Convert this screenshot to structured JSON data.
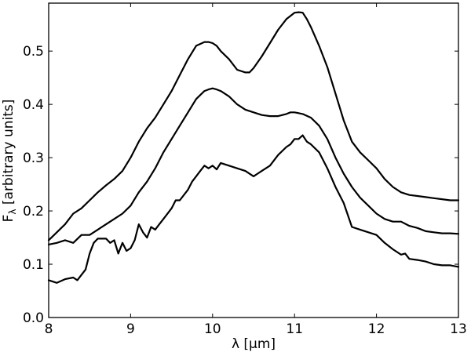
{
  "chart_data": {
    "type": "line",
    "title": "",
    "xlabel": "λ [μm]",
    "ylabel": "F_λ [arbitrary units]",
    "ylabel_main": "F",
    "ylabel_sub": "λ",
    "ylabel_rest": " [arbitrary units]",
    "xlim": [
      8,
      13
    ],
    "ylim": [
      0.0,
      0.59
    ],
    "xticks": [
      8,
      9,
      10,
      11,
      12,
      13
    ],
    "xtick_labels": [
      "8",
      "9",
      "10",
      "11",
      "12",
      "13"
    ],
    "yticks": [
      0.0,
      0.1,
      0.2,
      0.3,
      0.4,
      0.5
    ],
    "ytick_labels": [
      "0.0",
      "0.1",
      "0.2",
      "0.3",
      "0.4",
      "0.5"
    ],
    "grid": false,
    "legend": "none",
    "line_color": "#000000",
    "series": [
      {
        "x": [
          8.0,
          8.1,
          8.2,
          8.3,
          8.4,
          8.5,
          8.6,
          8.7,
          8.8,
          8.9,
          9.0,
          9.1,
          9.2,
          9.3,
          9.4,
          9.5,
          9.6,
          9.7,
          9.8,
          9.9,
          9.95,
          10.0,
          10.05,
          10.1,
          10.2,
          10.3,
          10.4,
          10.45,
          10.5,
          10.6,
          10.7,
          10.8,
          10.9,
          11.0,
          11.05,
          11.1,
          11.15,
          11.2,
          11.3,
          11.4,
          11.5,
          11.6,
          11.7,
          11.8,
          11.9,
          12.0,
          12.1,
          12.2,
          12.3,
          12.4,
          12.5,
          12.6,
          12.7,
          12.8,
          12.9,
          13.0
        ],
        "y": [
          0.145,
          0.16,
          0.175,
          0.195,
          0.205,
          0.22,
          0.235,
          0.248,
          0.26,
          0.275,
          0.3,
          0.33,
          0.355,
          0.375,
          0.4,
          0.425,
          0.455,
          0.485,
          0.51,
          0.517,
          0.517,
          0.515,
          0.51,
          0.5,
          0.485,
          0.465,
          0.46,
          0.46,
          0.468,
          0.49,
          0.515,
          0.54,
          0.56,
          0.572,
          0.573,
          0.572,
          0.56,
          0.545,
          0.51,
          0.47,
          0.42,
          0.37,
          0.33,
          0.31,
          0.295,
          0.28,
          0.26,
          0.245,
          0.235,
          0.23,
          0.228,
          0.226,
          0.224,
          0.222,
          0.22,
          0.22
        ]
      },
      {
        "x": [
          8.0,
          8.1,
          8.2,
          8.3,
          8.4,
          8.5,
          8.6,
          8.7,
          8.8,
          8.9,
          9.0,
          9.1,
          9.2,
          9.3,
          9.4,
          9.5,
          9.6,
          9.7,
          9.8,
          9.9,
          9.95,
          10.0,
          10.05,
          10.1,
          10.2,
          10.3,
          10.4,
          10.5,
          10.6,
          10.7,
          10.8,
          10.9,
          10.95,
          11.0,
          11.1,
          11.2,
          11.3,
          11.4,
          11.5,
          11.6,
          11.7,
          11.8,
          11.9,
          12.0,
          12.1,
          12.2,
          12.3,
          12.4,
          12.5,
          12.6,
          12.7,
          12.8,
          12.9,
          13.0
        ],
        "y": [
          0.137,
          0.14,
          0.145,
          0.14,
          0.155,
          0.155,
          0.165,
          0.175,
          0.185,
          0.195,
          0.21,
          0.235,
          0.255,
          0.28,
          0.31,
          0.335,
          0.36,
          0.385,
          0.41,
          0.425,
          0.428,
          0.43,
          0.428,
          0.425,
          0.415,
          0.4,
          0.39,
          0.385,
          0.38,
          0.378,
          0.378,
          0.382,
          0.385,
          0.385,
          0.382,
          0.375,
          0.36,
          0.335,
          0.3,
          0.27,
          0.245,
          0.225,
          0.21,
          0.195,
          0.185,
          0.18,
          0.18,
          0.172,
          0.168,
          0.162,
          0.16,
          0.158,
          0.158,
          0.157
        ]
      },
      {
        "x": [
          8.0,
          8.1,
          8.2,
          8.3,
          8.35,
          8.4,
          8.45,
          8.5,
          8.55,
          8.6,
          8.7,
          8.75,
          8.8,
          8.85,
          8.9,
          8.95,
          9.0,
          9.05,
          9.1,
          9.15,
          9.2,
          9.25,
          9.3,
          9.35,
          9.4,
          9.5,
          9.55,
          9.6,
          9.7,
          9.75,
          9.8,
          9.85,
          9.9,
          9.95,
          10.0,
          10.05,
          10.1,
          10.2,
          10.3,
          10.4,
          10.5,
          10.55,
          10.6,
          10.7,
          10.8,
          10.9,
          10.95,
          11.0,
          11.05,
          11.1,
          11.15,
          11.2,
          11.3,
          11.4,
          11.5,
          11.6,
          11.7,
          11.8,
          11.9,
          12.0,
          12.1,
          12.2,
          12.3,
          12.35,
          12.4,
          12.5,
          12.6,
          12.7,
          12.8,
          12.9,
          13.0
        ],
        "y": [
          0.07,
          0.065,
          0.072,
          0.075,
          0.07,
          0.08,
          0.09,
          0.12,
          0.14,
          0.148,
          0.148,
          0.14,
          0.145,
          0.12,
          0.14,
          0.125,
          0.13,
          0.145,
          0.175,
          0.16,
          0.15,
          0.17,
          0.165,
          0.175,
          0.185,
          0.205,
          0.22,
          0.22,
          0.24,
          0.255,
          0.265,
          0.275,
          0.285,
          0.28,
          0.285,
          0.278,
          0.29,
          0.285,
          0.28,
          0.275,
          0.265,
          0.27,
          0.275,
          0.285,
          0.305,
          0.32,
          0.325,
          0.335,
          0.335,
          0.342,
          0.33,
          0.325,
          0.31,
          0.28,
          0.245,
          0.215,
          0.17,
          0.165,
          0.16,
          0.155,
          0.14,
          0.128,
          0.118,
          0.12,
          0.11,
          0.108,
          0.105,
          0.1,
          0.098,
          0.098,
          0.095
        ]
      }
    ]
  }
}
